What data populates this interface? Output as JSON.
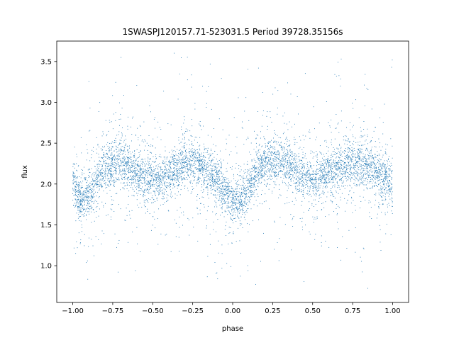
{
  "chart_data": {
    "type": "scatter",
    "title": "1SWASPJ120157.71-523031.5 Period 39728.35156s",
    "xlabel": "phase",
    "ylabel": "flux",
    "xlim": [
      -1.1,
      1.1
    ],
    "ylim": [
      0.55,
      3.75
    ],
    "xticks": [
      -1.0,
      -0.75,
      -0.5,
      -0.25,
      0.0,
      0.25,
      0.5,
      0.75,
      1.0
    ],
    "xtick_labels": [
      "−1.00",
      "−0.75",
      "−0.50",
      "−0.25",
      "0.00",
      "0.25",
      "0.50",
      "0.75",
      "1.00"
    ],
    "yticks": [
      1.0,
      1.5,
      2.0,
      2.5,
      3.0,
      3.5
    ],
    "ytick_labels": [
      "1.0",
      "1.5",
      "2.0",
      "2.5",
      "3.0",
      "3.5"
    ],
    "grid": false,
    "marker_color": "#1f77b4",
    "series": [
      {
        "x": [
          -1.0,
          -0.95,
          -0.9,
          -0.85,
          -0.8,
          -0.75,
          -0.7,
          -0.65,
          -0.6,
          -0.55,
          -0.5,
          -0.45,
          -0.4,
          -0.35,
          -0.3,
          -0.25,
          -0.2,
          -0.15,
          -0.1,
          -0.05,
          0.0,
          0.05,
          0.1,
          0.15,
          0.2,
          0.25,
          0.3,
          0.35,
          0.4,
          0.45,
          0.5,
          0.55,
          0.6,
          0.65,
          0.7,
          0.75,
          0.8,
          0.85,
          0.9,
          0.95,
          1.0
        ],
        "y": [
          2.0,
          1.8,
          1.88,
          2.05,
          2.18,
          2.25,
          2.28,
          2.22,
          2.15,
          2.08,
          2.04,
          2.05,
          2.12,
          2.2,
          2.25,
          2.25,
          2.22,
          2.15,
          2.05,
          1.9,
          1.75,
          1.8,
          1.95,
          2.15,
          2.25,
          2.3,
          2.3,
          2.25,
          2.15,
          2.07,
          2.04,
          2.05,
          2.12,
          2.18,
          2.2,
          2.25,
          2.25,
          2.22,
          2.18,
          2.1,
          2.0
        ]
      }
    ]
  }
}
